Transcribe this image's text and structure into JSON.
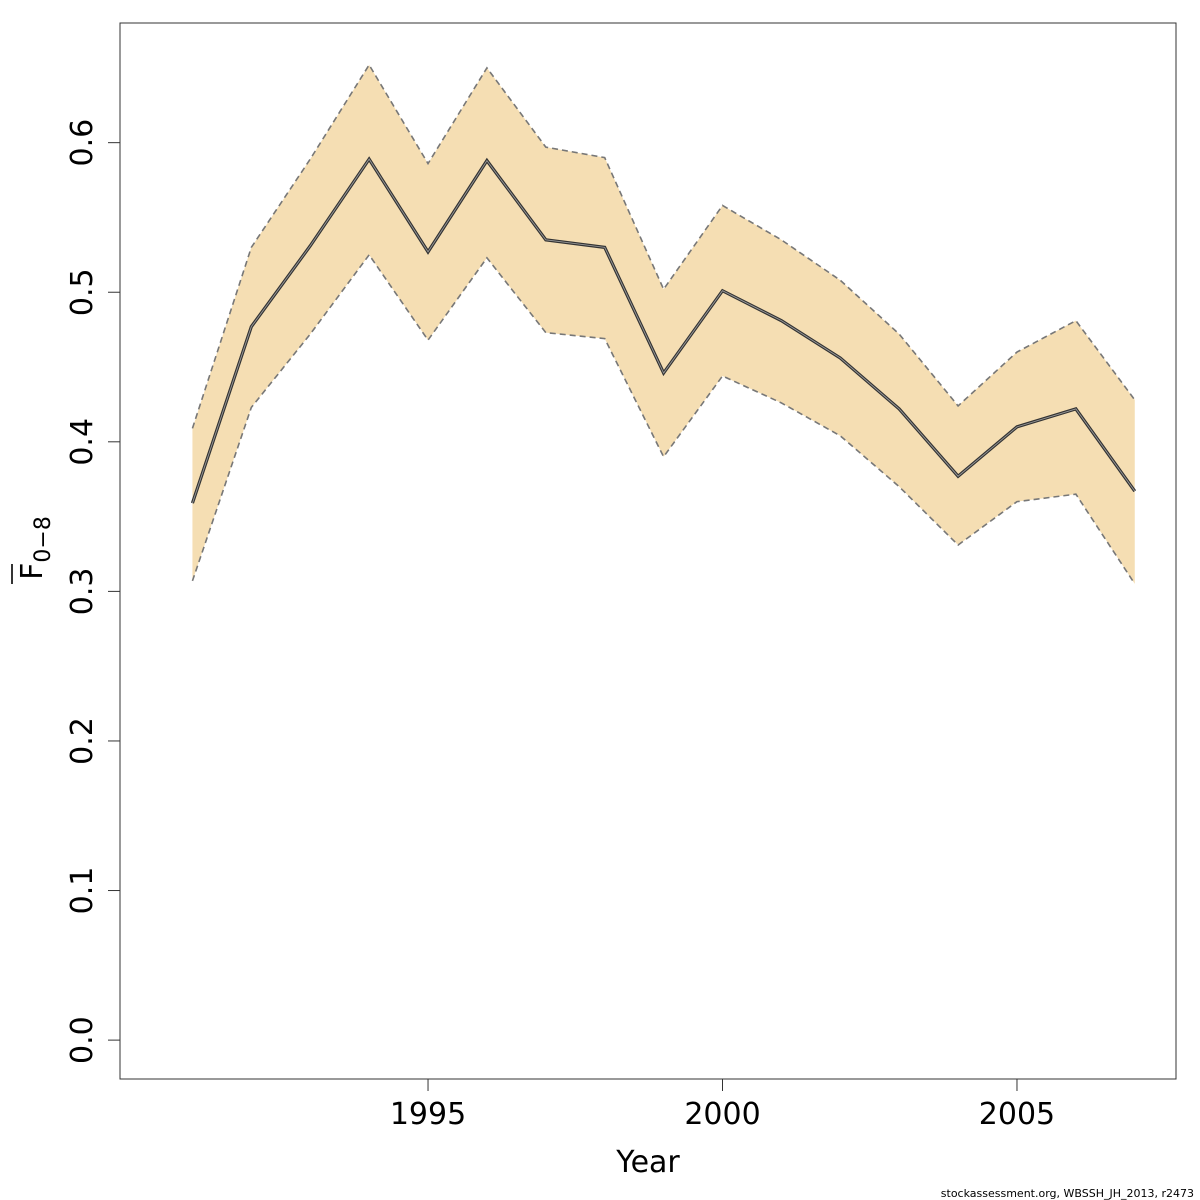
{
  "chart_data": {
    "type": "line",
    "xlabel": "Year",
    "ylabel": "F",
    "ylabel_subscript": "0−8",
    "xlim": [
      1989.77,
      2007.7
    ],
    "ylim": [
      -0.026,
      0.68
    ],
    "x_ticks": [
      1995,
      2000,
      2005
    ],
    "y_ticks": [
      "0.0",
      "0.1",
      "0.2",
      "0.3",
      "0.4",
      "0.5",
      "0.6"
    ],
    "grid": false,
    "legend": "none",
    "colors": {
      "band": "#f5deb3",
      "line": "#333333",
      "bounds": "#777777"
    },
    "x": [
      1991,
      1992,
      1993,
      1994,
      1995,
      1996,
      1997,
      1998,
      1999,
      2000,
      2001,
      2002,
      2003,
      2004,
      2005,
      2006,
      2007
    ],
    "series": [
      {
        "role": "estimate",
        "values": [
          0.359,
          0.477,
          0.531,
          0.589,
          0.527,
          0.588,
          0.535,
          0.53,
          0.446,
          0.501,
          0.481,
          0.456,
          0.422,
          0.377,
          0.41,
          0.422,
          0.367
        ]
      },
      {
        "role": "upper",
        "values": [
          0.409,
          0.53,
          0.589,
          0.652,
          0.586,
          0.65,
          0.597,
          0.59,
          0.502,
          0.558,
          0.535,
          0.508,
          0.472,
          0.424,
          0.46,
          0.481,
          0.428
        ]
      },
      {
        "role": "lower",
        "values": [
          0.307,
          0.423,
          0.472,
          0.525,
          0.468,
          0.523,
          0.473,
          0.469,
          0.39,
          0.444,
          0.426,
          0.404,
          0.37,
          0.331,
          0.36,
          0.365,
          0.305
        ]
      }
    ]
  },
  "footer": {
    "credit": "stockassessment.org, WBSSH_JH_2013, r2473"
  }
}
